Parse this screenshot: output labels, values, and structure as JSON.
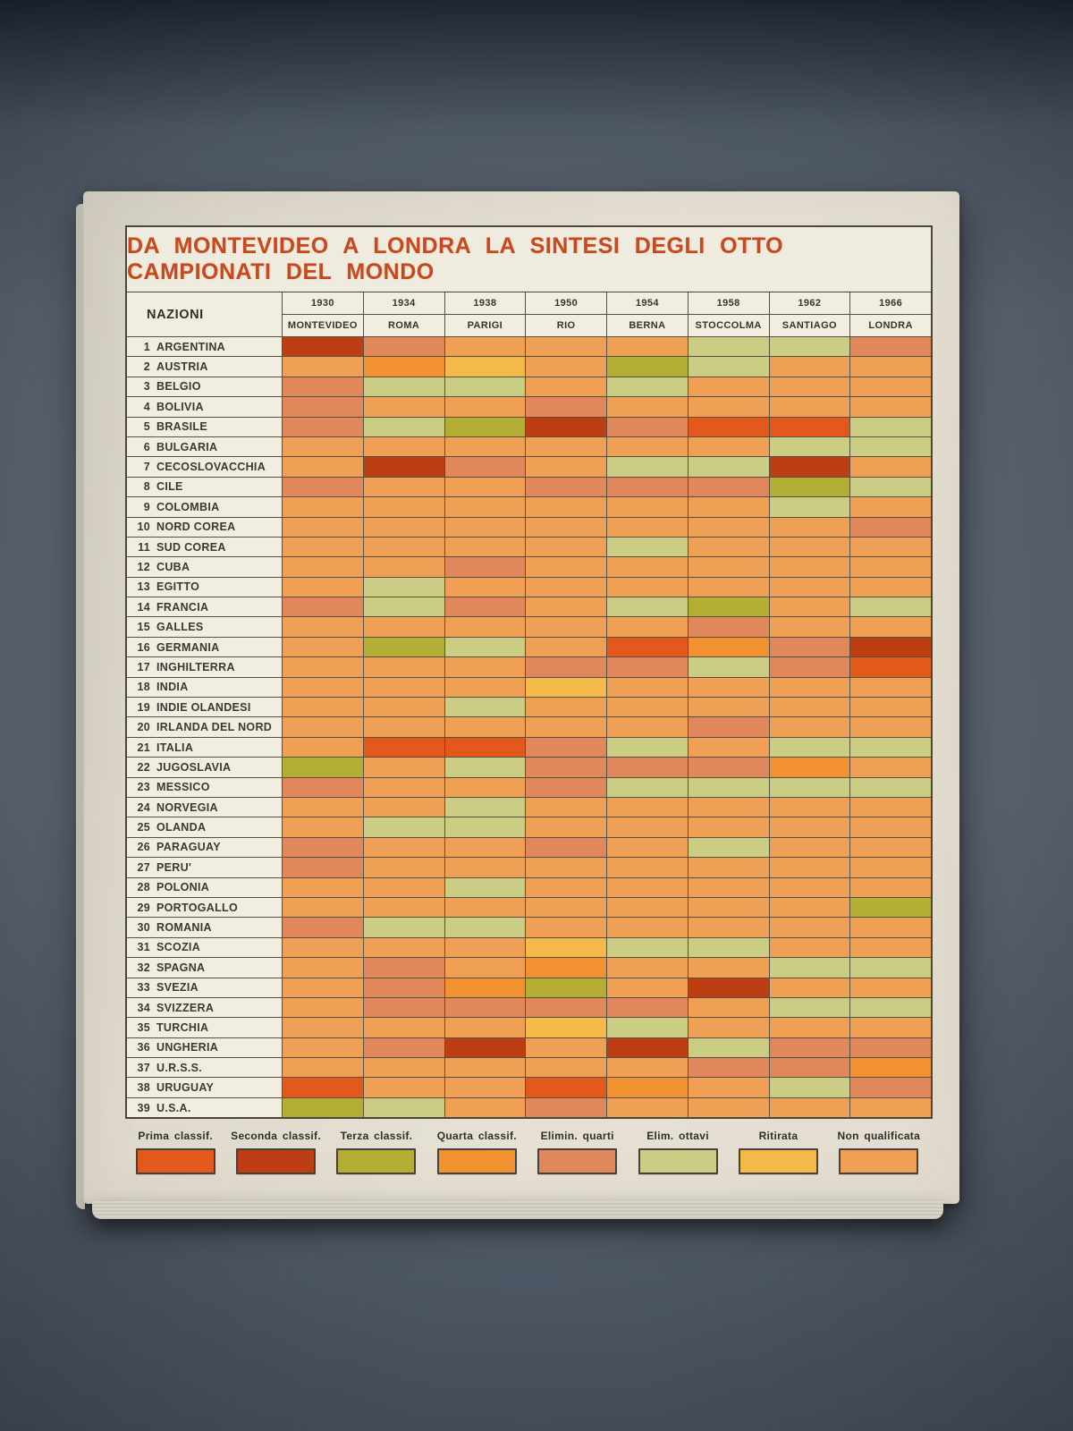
{
  "chart_data": {
    "type": "heatmap",
    "title": "DA MONTEVIDEO A LONDRA LA SINTESI DEGLI OTTO CAMPIONATI DEL MONDO",
    "nations_label": "NAZIONI",
    "columns": [
      {
        "year": "1930",
        "city": "MONTEVIDEO"
      },
      {
        "year": "1934",
        "city": "ROMA"
      },
      {
        "year": "1938",
        "city": "PARIGI"
      },
      {
        "year": "1950",
        "city": "RIO"
      },
      {
        "year": "1954",
        "city": "BERNA"
      },
      {
        "year": "1958",
        "city": "STOCCOLMA"
      },
      {
        "year": "1962",
        "city": "SANTIAGO"
      },
      {
        "year": "1966",
        "city": "LONDRA"
      }
    ],
    "legend": [
      {
        "label": "Prima classif.",
        "key": "prima"
      },
      {
        "label": "Seconda classif.",
        "key": "seconda"
      },
      {
        "label": "Terza classif.",
        "key": "terza"
      },
      {
        "label": "Quarta classif.",
        "key": "quarta"
      },
      {
        "label": "Elimin. quarti",
        "key": "quarti"
      },
      {
        "label": "Elim. ottavi",
        "key": "ottavi"
      },
      {
        "label": "Ritirata",
        "key": "ritirata"
      },
      {
        "label": "Non qualificata",
        "key": "nonqual"
      }
    ],
    "colors": {
      "prima": "#e2591b",
      "seconda": "#be3e14",
      "terza": "#b4ae35",
      "quarta": "#f2912f",
      "quarti": "#e0875c",
      "ottavi": "#cbcd85",
      "ritirata": "#f3ba49",
      "nonqual": "#f0a055"
    },
    "rows": [
      {
        "num": "1",
        "name": "ARGENTINA",
        "results": [
          "seconda",
          "quarti",
          "nonqual",
          "nonqual",
          "nonqual",
          "ottavi",
          "ottavi",
          "quarti"
        ]
      },
      {
        "num": "2",
        "name": "AUSTRIA",
        "results": [
          "nonqual",
          "quarta",
          "ritirata",
          "nonqual",
          "terza",
          "ottavi",
          "nonqual",
          "nonqual"
        ]
      },
      {
        "num": "3",
        "name": "BELGIO",
        "results": [
          "quarti",
          "ottavi",
          "ottavi",
          "nonqual",
          "ottavi",
          "nonqual",
          "nonqual",
          "nonqual"
        ]
      },
      {
        "num": "4",
        "name": "BOLIVIA",
        "results": [
          "quarti",
          "nonqual",
          "nonqual",
          "quarti",
          "nonqual",
          "nonqual",
          "nonqual",
          "nonqual"
        ]
      },
      {
        "num": "5",
        "name": "BRASILE",
        "results": [
          "quarti",
          "ottavi",
          "terza",
          "seconda",
          "quarti",
          "prima",
          "prima",
          "ottavi"
        ]
      },
      {
        "num": "6",
        "name": "BULGARIA",
        "results": [
          "nonqual",
          "nonqual",
          "nonqual",
          "nonqual",
          "nonqual",
          "nonqual",
          "ottavi",
          "ottavi"
        ]
      },
      {
        "num": "7",
        "name": "CECOSLOVACCHIA",
        "results": [
          "nonqual",
          "seconda",
          "quarti",
          "nonqual",
          "ottavi",
          "ottavi",
          "seconda",
          "nonqual"
        ]
      },
      {
        "num": "8",
        "name": "CILE",
        "results": [
          "quarti",
          "nonqual",
          "nonqual",
          "quarti",
          "quarti",
          "quarti",
          "terza",
          "ottavi"
        ]
      },
      {
        "num": "9",
        "name": "COLOMBIA",
        "results": [
          "nonqual",
          "nonqual",
          "nonqual",
          "nonqual",
          "nonqual",
          "nonqual",
          "ottavi",
          "nonqual"
        ]
      },
      {
        "num": "10",
        "name": "NORD COREA",
        "results": [
          "nonqual",
          "nonqual",
          "nonqual",
          "nonqual",
          "nonqual",
          "nonqual",
          "nonqual",
          "quarti"
        ]
      },
      {
        "num": "11",
        "name": "SUD COREA",
        "results": [
          "nonqual",
          "nonqual",
          "nonqual",
          "nonqual",
          "ottavi",
          "nonqual",
          "nonqual",
          "nonqual"
        ]
      },
      {
        "num": "12",
        "name": "CUBA",
        "results": [
          "nonqual",
          "nonqual",
          "quarti",
          "nonqual",
          "nonqual",
          "nonqual",
          "nonqual",
          "nonqual"
        ]
      },
      {
        "num": "13",
        "name": "EGITTO",
        "results": [
          "nonqual",
          "ottavi",
          "nonqual",
          "nonqual",
          "nonqual",
          "nonqual",
          "nonqual",
          "nonqual"
        ]
      },
      {
        "num": "14",
        "name": "FRANCIA",
        "results": [
          "quarti",
          "ottavi",
          "quarti",
          "nonqual",
          "ottavi",
          "terza",
          "nonqual",
          "ottavi"
        ]
      },
      {
        "num": "15",
        "name": "GALLES",
        "results": [
          "nonqual",
          "nonqual",
          "nonqual",
          "nonqual",
          "nonqual",
          "quarti",
          "nonqual",
          "nonqual"
        ]
      },
      {
        "num": "16",
        "name": "GERMANIA",
        "results": [
          "nonqual",
          "terza",
          "ottavi",
          "nonqual",
          "prima",
          "quarta",
          "quarti",
          "seconda"
        ]
      },
      {
        "num": "17",
        "name": "INGHILTERRA",
        "results": [
          "nonqual",
          "nonqual",
          "nonqual",
          "quarti",
          "quarti",
          "ottavi",
          "quarti",
          "prima"
        ]
      },
      {
        "num": "18",
        "name": "INDIA",
        "results": [
          "nonqual",
          "nonqual",
          "nonqual",
          "ritirata",
          "nonqual",
          "nonqual",
          "nonqual",
          "nonqual"
        ]
      },
      {
        "num": "19",
        "name": "INDIE OLANDESI",
        "results": [
          "nonqual",
          "nonqual",
          "ottavi",
          "nonqual",
          "nonqual",
          "nonqual",
          "nonqual",
          "nonqual"
        ]
      },
      {
        "num": "20",
        "name": "IRLANDA DEL NORD",
        "results": [
          "nonqual",
          "nonqual",
          "nonqual",
          "nonqual",
          "nonqual",
          "quarti",
          "nonqual",
          "nonqual"
        ]
      },
      {
        "num": "21",
        "name": "ITALIA",
        "results": [
          "nonqual",
          "prima",
          "prima",
          "quarti",
          "ottavi",
          "nonqual",
          "ottavi",
          "ottavi"
        ]
      },
      {
        "num": "22",
        "name": "JUGOSLAVIA",
        "results": [
          "terza",
          "nonqual",
          "ottavi",
          "quarti",
          "quarti",
          "quarti",
          "quarta",
          "nonqual"
        ]
      },
      {
        "num": "23",
        "name": "MESSICO",
        "results": [
          "quarti",
          "nonqual",
          "nonqual",
          "quarti",
          "ottavi",
          "ottavi",
          "ottavi",
          "ottavi"
        ]
      },
      {
        "num": "24",
        "name": "NORVEGIA",
        "results": [
          "nonqual",
          "nonqual",
          "ottavi",
          "nonqual",
          "nonqual",
          "nonqual",
          "nonqual",
          "nonqual"
        ]
      },
      {
        "num": "25",
        "name": "OLANDA",
        "results": [
          "nonqual",
          "ottavi",
          "ottavi",
          "nonqual",
          "nonqual",
          "nonqual",
          "nonqual",
          "nonqual"
        ]
      },
      {
        "num": "26",
        "name": "PARAGUAY",
        "results": [
          "quarti",
          "nonqual",
          "nonqual",
          "quarti",
          "nonqual",
          "ottavi",
          "nonqual",
          "nonqual"
        ]
      },
      {
        "num": "27",
        "name": "PERU'",
        "results": [
          "quarti",
          "nonqual",
          "nonqual",
          "nonqual",
          "nonqual",
          "nonqual",
          "nonqual",
          "nonqual"
        ]
      },
      {
        "num": "28",
        "name": "POLONIA",
        "results": [
          "nonqual",
          "nonqual",
          "ottavi",
          "nonqual",
          "nonqual",
          "nonqual",
          "nonqual",
          "nonqual"
        ]
      },
      {
        "num": "29",
        "name": "PORTOGALLO",
        "results": [
          "nonqual",
          "nonqual",
          "nonqual",
          "nonqual",
          "nonqual",
          "nonqual",
          "nonqual",
          "terza"
        ]
      },
      {
        "num": "30",
        "name": "ROMANIA",
        "results": [
          "quarti",
          "ottavi",
          "ottavi",
          "nonqual",
          "nonqual",
          "nonqual",
          "nonqual",
          "nonqual"
        ]
      },
      {
        "num": "31",
        "name": "SCOZIA",
        "results": [
          "nonqual",
          "nonqual",
          "nonqual",
          "ritirata",
          "ottavi",
          "ottavi",
          "nonqual",
          "nonqual"
        ]
      },
      {
        "num": "32",
        "name": "SPAGNA",
        "results": [
          "nonqual",
          "quarti",
          "nonqual",
          "quarta",
          "nonqual",
          "nonqual",
          "ottavi",
          "ottavi"
        ]
      },
      {
        "num": "33",
        "name": "SVEZIA",
        "results": [
          "nonqual",
          "quarti",
          "quarta",
          "terza",
          "nonqual",
          "seconda",
          "nonqual",
          "nonqual"
        ]
      },
      {
        "num": "34",
        "name": "SVIZZERA",
        "results": [
          "nonqual",
          "quarti",
          "quarti",
          "quarti",
          "quarti",
          "nonqual",
          "ottavi",
          "ottavi"
        ]
      },
      {
        "num": "35",
        "name": "TURCHIA",
        "results": [
          "nonqual",
          "nonqual",
          "nonqual",
          "ritirata",
          "ottavi",
          "nonqual",
          "nonqual",
          "nonqual"
        ]
      },
      {
        "num": "36",
        "name": "UNGHERIA",
        "results": [
          "nonqual",
          "quarti",
          "seconda",
          "nonqual",
          "seconda",
          "ottavi",
          "quarti",
          "quarti"
        ]
      },
      {
        "num": "37",
        "name": "U.R.S.S.",
        "results": [
          "nonqual",
          "nonqual",
          "nonqual",
          "nonqual",
          "nonqual",
          "quarti",
          "quarti",
          "quarta"
        ]
      },
      {
        "num": "38",
        "name": "URUGUAY",
        "results": [
          "prima",
          "nonqual",
          "nonqual",
          "prima",
          "quarta",
          "nonqual",
          "ottavi",
          "quarti"
        ]
      },
      {
        "num": "39",
        "name": "U.S.A.",
        "results": [
          "terza",
          "ottavi",
          "nonqual",
          "quarti",
          "nonqual",
          "nonqual",
          "nonqual",
          "nonqual"
        ]
      }
    ]
  }
}
